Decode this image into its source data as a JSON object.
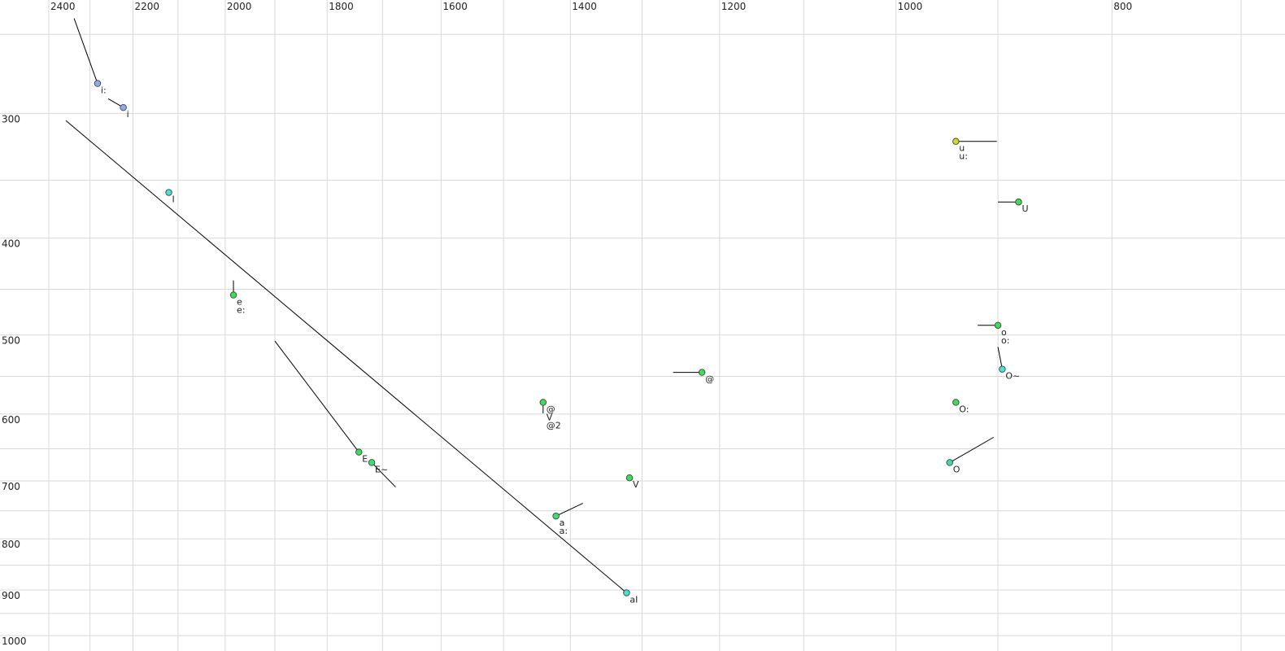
{
  "chart_data": {
    "type": "scatter",
    "x_scale": "log",
    "y_scale": "log",
    "xlim": [
      2524,
      669
    ],
    "ylim": [
      1036,
      231
    ],
    "xticks": [
      2400,
      2200,
      2000,
      1800,
      1600,
      1400,
      1200,
      1000,
      800
    ],
    "x_gridlines": [
      2300,
      2100,
      1900,
      1700,
      1500,
      1300,
      1100,
      900,
      700
    ],
    "yticks": [
      300,
      400,
      500,
      600,
      700,
      800,
      900,
      1000
    ],
    "y_gridlines": [
      250,
      350,
      450,
      550,
      650,
      750,
      850,
      950
    ],
    "grid": true,
    "points": [
      {
        "labels": [
          "i:"
        ],
        "x": 2282,
        "y": 280,
        "color": "#8eaaf0",
        "trail": {
          "x": 2338,
          "y": 241
        }
      },
      {
        "labels": [
          "i"
        ],
        "x": 2222,
        "y": 296,
        "color": "#8eaaf0",
        "trail": {
          "x": 2257,
          "y": 290
        }
      },
      {
        "labels": [
          "I"
        ],
        "x": 2120,
        "y": 360,
        "color": "#46e0d4"
      },
      {
        "labels": [
          "aI"
        ],
        "x": 1321,
        "y": 906,
        "color": "#46e0d4",
        "trail": {
          "x": 2358,
          "y": 305
        }
      },
      {
        "labels": [
          "e",
          "e:"
        ],
        "x": 1983,
        "y": 456,
        "color": "#3ddc5a",
        "trail": {
          "x": 1983,
          "y": 441
        }
      },
      {
        "labels": [
          "E"
        ],
        "x": 1742,
        "y": 655,
        "color": "#3ddc5a",
        "trail": {
          "x": 1900,
          "y": 507
        }
      },
      {
        "labels": [
          "E~"
        ],
        "x": 1719,
        "y": 671,
        "color": "#3ddc7a",
        "trail": {
          "x": 1677,
          "y": 710
        }
      },
      {
        "labels": [
          "@"
        ],
        "x": 1222,
        "y": 545,
        "color": "#3ddc5a",
        "trail": {
          "x": 1259,
          "y": 545
        }
      },
      {
        "labels": [
          "@",
          "V",
          "@2"
        ],
        "faded": [
          true,
          true,
          false
        ],
        "x": 1440,
        "y": 584,
        "color": "#3ddc5a",
        "trail": {
          "x": 1440,
          "y": 599
        }
      },
      {
        "labels": [
          "V"
        ],
        "x": 1317,
        "y": 695,
        "color": "#3ddc5a"
      },
      {
        "labels": [
          "a",
          "a:"
        ],
        "x": 1421,
        "y": 759,
        "color": "#3ddc7a",
        "trail": {
          "x": 1382,
          "y": 737
        }
      },
      {
        "labels": [
          "u",
          "u:"
        ],
        "x": 940,
        "y": 320,
        "color": "#c8dc28",
        "trail": {
          "x": 901,
          "y": 320
        }
      },
      {
        "labels": [
          "U"
        ],
        "x": 881,
        "y": 368,
        "color": "#3ddc5a",
        "trail": {
          "x": 900,
          "y": 368
        }
      },
      {
        "labels": [
          "o",
          "o:"
        ],
        "x": 900,
        "y": 489,
        "color": "#3ddc5a",
        "trail": {
          "x": 919,
          "y": 489
        }
      },
      {
        "labels": [
          "O~"
        ],
        "x": 896,
        "y": 541,
        "color": "#46e0d4",
        "trail": {
          "x": 900,
          "y": 514
        }
      },
      {
        "labels": [
          "O:"
        ],
        "x": 940,
        "y": 584,
        "color": "#3ddc5a"
      },
      {
        "labels": [
          "O"
        ],
        "x": 946,
        "y": 671,
        "color": "#3ddca0",
        "trail": {
          "x": 904,
          "y": 633
        }
      }
    ]
  }
}
